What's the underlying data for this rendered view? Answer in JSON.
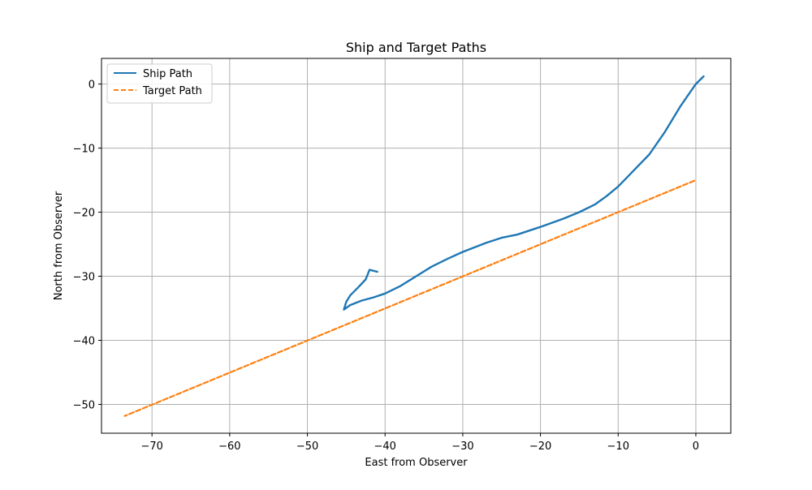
{
  "chart_data": {
    "type": "line",
    "title": "Ship and Target Paths",
    "xlabel": "East from Observer",
    "ylabel": "North from Observer",
    "xlim": [
      -76.5,
      4.5
    ],
    "ylim": [
      -54.5,
      4
    ],
    "xticks": [
      -70,
      -60,
      -50,
      -40,
      -30,
      -20,
      -10,
      0
    ],
    "yticks": [
      0,
      -10,
      -20,
      -30,
      -40,
      -50
    ],
    "xtick_labels": [
      "−70",
      "−60",
      "−50",
      "−40",
      "−30",
      "−20",
      "−10",
      "0"
    ],
    "ytick_labels": [
      "0",
      "−10",
      "−20",
      "−30",
      "−40",
      "−50"
    ],
    "grid": true,
    "legend_position": "top-left",
    "series": [
      {
        "name": "Ship Path",
        "color": "#1f77b4",
        "style": "solid",
        "x": [
          1.0,
          0.0,
          -2.0,
          -4.0,
          -6.0,
          -8.0,
          -10.0,
          -11.5,
          -13.0,
          -15.0,
          -17.0,
          -20.0,
          -23.0,
          -25.0,
          -27.0,
          -30.0,
          -32.0,
          -34.0,
          -36.0,
          -38.0,
          -40.0,
          -41.5,
          -43.0,
          -44.5,
          -45.3,
          -45.0,
          -44.5,
          -43.5,
          -42.5,
          -42.0,
          -41.0
        ],
        "y": [
          1.2,
          0.0,
          -3.5,
          -7.5,
          -11.0,
          -13.5,
          -16.0,
          -17.5,
          -18.8,
          -20.0,
          -21.0,
          -22.3,
          -23.5,
          -24.0,
          -24.8,
          -26.2,
          -27.3,
          -28.5,
          -30.0,
          -31.5,
          -32.7,
          -33.3,
          -33.8,
          -34.5,
          -35.2,
          -34.0,
          -33.0,
          -31.8,
          -30.5,
          -29.0,
          -29.3
        ]
      },
      {
        "name": "Target Path",
        "color": "#ff7f0e",
        "style": "dashed",
        "x": [
          -0.2,
          -73.5
        ],
        "y": [
          -15.1,
          -51.8
        ]
      }
    ]
  }
}
